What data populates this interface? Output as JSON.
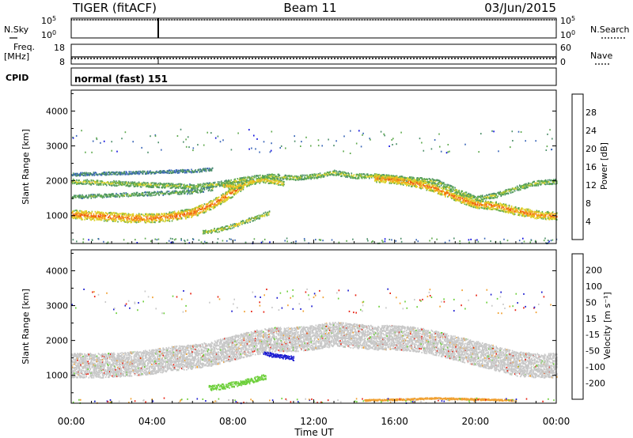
{
  "header": {
    "station": "TIGER (fitACF)",
    "beam": "Beam 11",
    "date": "03/Jun/2015"
  },
  "nsky_panel": {
    "left_label": "N.Sky",
    "tick_top": "10^5",
    "tick_bottom": "10^0",
    "right_label": "N.Search",
    "right_tick_top": "10^5",
    "right_tick_bottom": "10^0"
  },
  "freq_panel": {
    "left_label_top": "Freq.",
    "left_label_bottom": "[MHz]",
    "tick_top": "18",
    "tick_bottom": "8",
    "right_label": "Nave",
    "right_tick_top": "60",
    "right_tick_bottom": "0"
  },
  "cpid_panel": {
    "label": "CPID",
    "text": "normal (fast) 151"
  },
  "x_axis": {
    "label": "Time UT",
    "ticks": [
      "00:00",
      "04:00",
      "08:00",
      "12:00",
      "16:00",
      "20:00",
      "00:00"
    ]
  },
  "chart_data": [
    {
      "type": "heatmap",
      "name": "power",
      "ylabel": "Slant Range [km]",
      "yticks": [
        1000,
        2000,
        3000,
        4000
      ],
      "ylim": [
        200,
        4600
      ],
      "xlim": [
        0,
        24
      ],
      "colorbar": {
        "label": "Power [dB]",
        "ticks": [
          "4",
          "8",
          "12",
          "16",
          "20",
          "24",
          "28"
        ],
        "colors": [
          "#1010e0",
          "#3a66b8",
          "#4d8f6a",
          "#5faa4e",
          "#dcd22a",
          "#f4a318",
          "#ef5a12",
          "#e81a10"
        ]
      },
      "bands": [
        {
          "t": [
            0,
            1.5,
            3,
            4,
            5,
            6,
            7,
            8,
            8.5
          ],
          "r": [
            1050,
            1000,
            950,
            950,
            1000,
            1100,
            1350,
            1700,
            1900
          ],
          "w": 260,
          "level": 0.85
        },
        {
          "t": [
            0,
            2,
            4,
            6,
            7,
            8,
            9,
            10,
            11,
            12,
            13,
            14,
            15,
            16,
            17,
            18,
            19,
            20,
            21,
            22,
            23,
            24
          ],
          "r": [
            2000,
            1950,
            1900,
            1850,
            1900,
            2000,
            2100,
            2150,
            2100,
            2150,
            2250,
            2150,
            2150,
            2100,
            2050,
            2000,
            1750,
            1500,
            1600,
            1800,
            1950,
            2000
          ],
          "w": 140,
          "level": 0.55
        },
        {
          "t": [
            7.5,
            8,
            8.5,
            9,
            9.5,
            10,
            10.5
          ],
          "r": [
            1900,
            1850,
            1900,
            2000,
            2050,
            2000,
            1950
          ],
          "w": 160,
          "level": 0.7
        },
        {
          "t": [
            15,
            16,
            17,
            18,
            19,
            20,
            21,
            22,
            23,
            24
          ],
          "r": [
            2100,
            2050,
            1950,
            1800,
            1550,
            1350,
            1300,
            1150,
            1050,
            1000
          ],
          "w": 230,
          "level": 0.82
        },
        {
          "t": [
            6.5,
            7.2,
            8,
            8.6,
            9.2,
            9.8
          ],
          "r": [
            550,
            600,
            720,
            850,
            980,
            1100
          ],
          "w": 120,
          "level": 0.6
        },
        {
          "t": [
            0,
            2,
            4,
            6,
            7
          ],
          "r": [
            1550,
            1600,
            1650,
            1700,
            1800
          ],
          "w": 110,
          "level": 0.45
        },
        {
          "t": [
            0,
            3,
            6,
            7
          ],
          "r": [
            2200,
            2250,
            2300,
            2350
          ],
          "w": 90,
          "level": 0.3
        }
      ]
    },
    {
      "type": "heatmap",
      "name": "velocity",
      "ylabel": "Slant Range [km]",
      "yticks": [
        1000,
        2000,
        3000,
        4000
      ],
      "ylim": [
        200,
        4600
      ],
      "xlim": [
        0,
        24
      ],
      "colorbar": {
        "label": "Velocity [m s⁻¹]",
        "ticks": [
          "200",
          "100",
          "50",
          "15",
          "-15",
          "-50",
          "-100",
          "-200"
        ],
        "colors": [
          "#1a1ad0",
          "#2e4fa0",
          "#3d8a55",
          "#6dcf3a",
          "#c8c8c8",
          "#f0a030",
          "#f07020",
          "#e82010",
          "#e01010"
        ]
      },
      "bands": [
        {
          "t": [
            0,
            1.5,
            3,
            4,
            5,
            6,
            7,
            8,
            9,
            10,
            11,
            12,
            13,
            14,
            15,
            16,
            17,
            18,
            19,
            20,
            21,
            22,
            23,
            24
          ],
          "r": [
            1300,
            1300,
            1350,
            1400,
            1500,
            1550,
            1650,
            1800,
            1950,
            2050,
            2050,
            2100,
            2200,
            2150,
            2100,
            2100,
            2050,
            1950,
            1800,
            1650,
            1500,
            1350,
            1300,
            1300
          ],
          "w": 700,
          "level": "gray"
        },
        {
          "t": [
            9.5,
            10,
            10.5,
            11
          ],
          "r": [
            1650,
            1600,
            1550,
            1500
          ],
          "w": 120,
          "level": "blue"
        },
        {
          "t": [
            6.8,
            7.5,
            8.2,
            9,
            9.6
          ],
          "r": [
            650,
            700,
            780,
            880,
            980
          ],
          "w": 150,
          "level": "green"
        },
        {
          "t": [
            14.5,
            16,
            18,
            20,
            22
          ],
          "r": [
            300,
            320,
            360,
            330,
            300
          ],
          "w": 40,
          "level": "orange"
        }
      ]
    }
  ]
}
